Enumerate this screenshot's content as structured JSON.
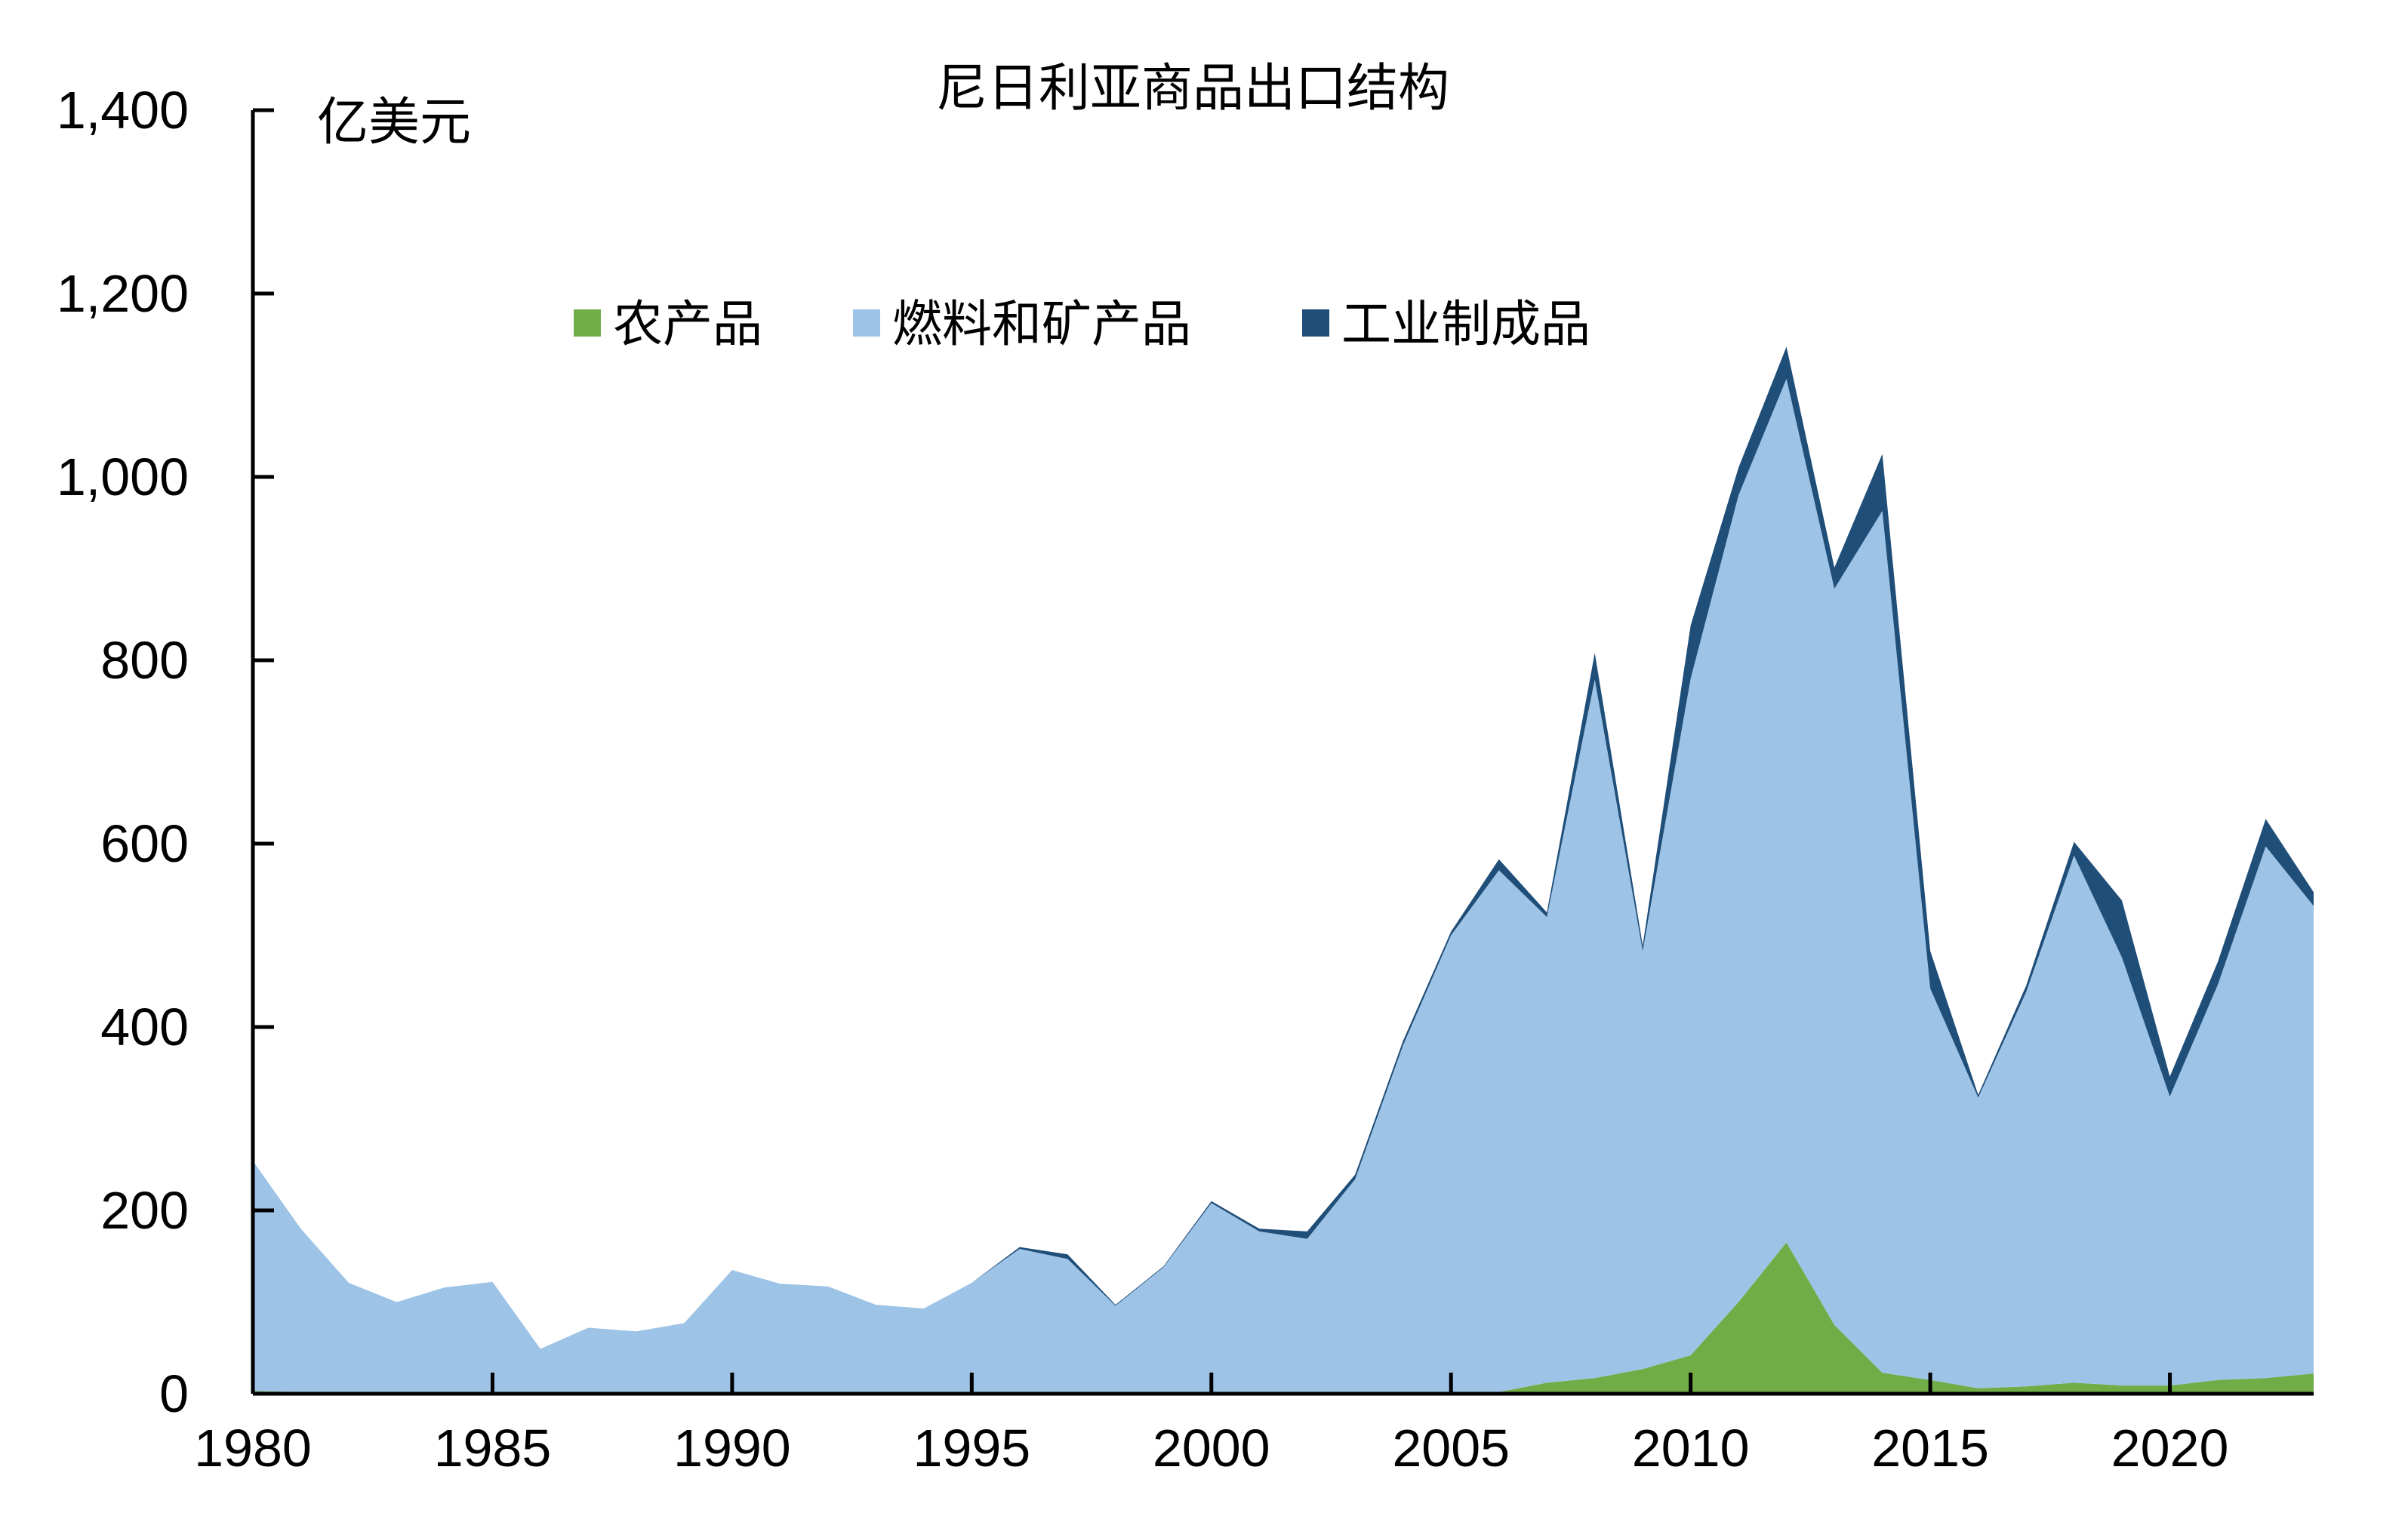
{
  "chart_data": {
    "type": "area",
    "stacked": true,
    "title": "尼日利亚商品出口结构",
    "ylabel": "亿美元",
    "xlabel": "",
    "ylim": [
      0,
      1400
    ],
    "xlim": [
      1980,
      2023
    ],
    "yticks": [
      0,
      200,
      400,
      600,
      800,
      1000,
      1200,
      1400
    ],
    "ytick_labels": [
      "0",
      "200",
      "400",
      "600",
      "800",
      "1,000",
      "1,200",
      "1,400"
    ],
    "xticks": [
      1980,
      1985,
      1990,
      1995,
      2000,
      2005,
      2010,
      2015,
      2020
    ],
    "xtick_labels": [
      "1980",
      "1985",
      "1990",
      "1995",
      "2000",
      "2005",
      "2010",
      "2015",
      "2020"
    ],
    "grid": false,
    "legend_position": "top-center",
    "x": [
      1980,
      1981,
      1982,
      1983,
      1984,
      1985,
      1986,
      1987,
      1988,
      1989,
      1990,
      1991,
      1992,
      1993,
      1994,
      1995,
      1996,
      1997,
      1998,
      1999,
      2000,
      2001,
      2002,
      2003,
      2004,
      2005,
      2006,
      2007,
      2008,
      2009,
      2010,
      2011,
      2012,
      2013,
      2014,
      2015,
      2016,
      2017,
      2018,
      2019,
      2020,
      2021,
      2022,
      2023
    ],
    "series": [
      {
        "name": "农产品",
        "color": "#70ad47",
        "values": [
          3,
          2,
          1,
          2,
          2,
          1,
          1,
          1,
          2,
          1,
          1,
          1,
          1,
          1,
          1,
          1,
          1,
          1,
          1,
          1,
          1,
          1,
          1,
          1,
          1,
          1,
          2,
          12,
          17,
          27,
          42,
          100,
          165,
          75,
          23,
          15,
          6,
          8,
          12,
          9,
          9,
          15,
          17,
          22
        ]
      },
      {
        "name": "燃料和矿产品",
        "color": "#9dc3e6",
        "values": [
          251,
          178,
          120,
          98,
          114,
          121,
          48,
          71,
          66,
          76,
          134,
          119,
          116,
          96,
          92,
          120,
          157,
          146,
          95,
          137,
          207,
          176,
          168,
          233,
          379,
          499,
          569,
          508,
          762,
          456,
          738,
          880,
          942,
          803,
          940,
          427,
          317,
          430,
          575,
          467,
          315,
          431,
          580,
          510
        ]
      },
      {
        "name": "工业制成品",
        "color": "#1f4e79",
        "values": [
          0,
          0,
          0,
          0,
          0,
          0,
          0,
          0,
          0,
          0,
          0,
          0,
          0,
          0,
          0,
          0,
          2,
          5,
          1,
          1,
          2,
          3,
          8,
          5,
          5,
          4,
          12,
          5,
          29,
          6,
          58,
          30,
          35,
          23,
          62,
          41,
          3,
          7,
          15,
          62,
          22,
          25,
          30,
          15
        ]
      }
    ]
  }
}
